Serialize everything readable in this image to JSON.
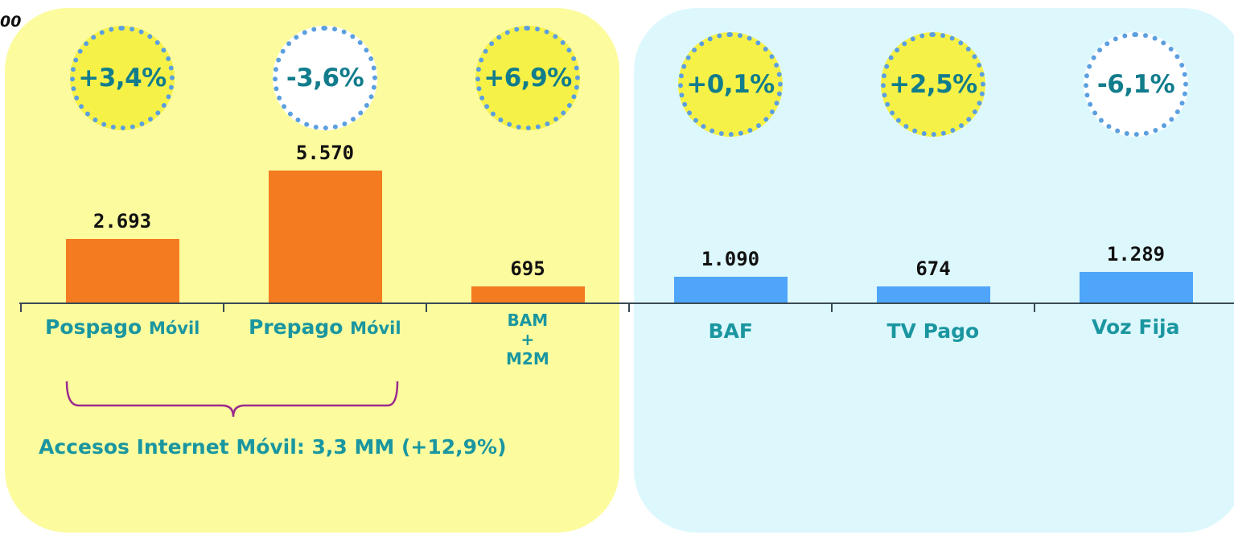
{
  "units_label": "00",
  "chart_data": {
    "type": "bar",
    "categories": [
      {
        "main": "Pospago",
        "sub": "Móvil"
      },
      {
        "main": "Prepago",
        "sub": "Móvil"
      },
      {
        "lines": [
          "BAM",
          "+",
          "M2M"
        ]
      },
      {
        "main": "BAF",
        "sub": ""
      },
      {
        "main": "TV Pago",
        "sub": ""
      },
      {
        "main": "Voz Fija",
        "sub": ""
      }
    ],
    "values": [
      2693,
      5570,
      695,
      1090,
      674,
      1289
    ],
    "value_labels": [
      "2.693",
      "5.570",
      "695",
      "1.090",
      "674",
      "1.289"
    ],
    "growth_labels": [
      "+3,4%",
      "-3,6%",
      "+6,9%",
      "+0,1%",
      "+2,5%",
      "-6,1%"
    ],
    "growth_positive": [
      true,
      false,
      true,
      true,
      true,
      false
    ],
    "groups": [
      "mobile",
      "mobile",
      "mobile",
      "fixed",
      "fixed",
      "fixed"
    ],
    "annotation": "Accesos Internet Móvil: 3,3 MM (+12,9%)",
    "ylim": [
      0,
      5570
    ]
  },
  "colors": {
    "mobile_bar": "#f47b20",
    "fixed_bar": "#4ea5f9",
    "mobile_panel": "#fcfb9e",
    "fixed_panel": "#ddf8fd",
    "positive_bubble": "#f6f147",
    "negative_bubble": "#ffffff",
    "label_text": "#1a96a0",
    "brace": "#9b2a8e"
  }
}
